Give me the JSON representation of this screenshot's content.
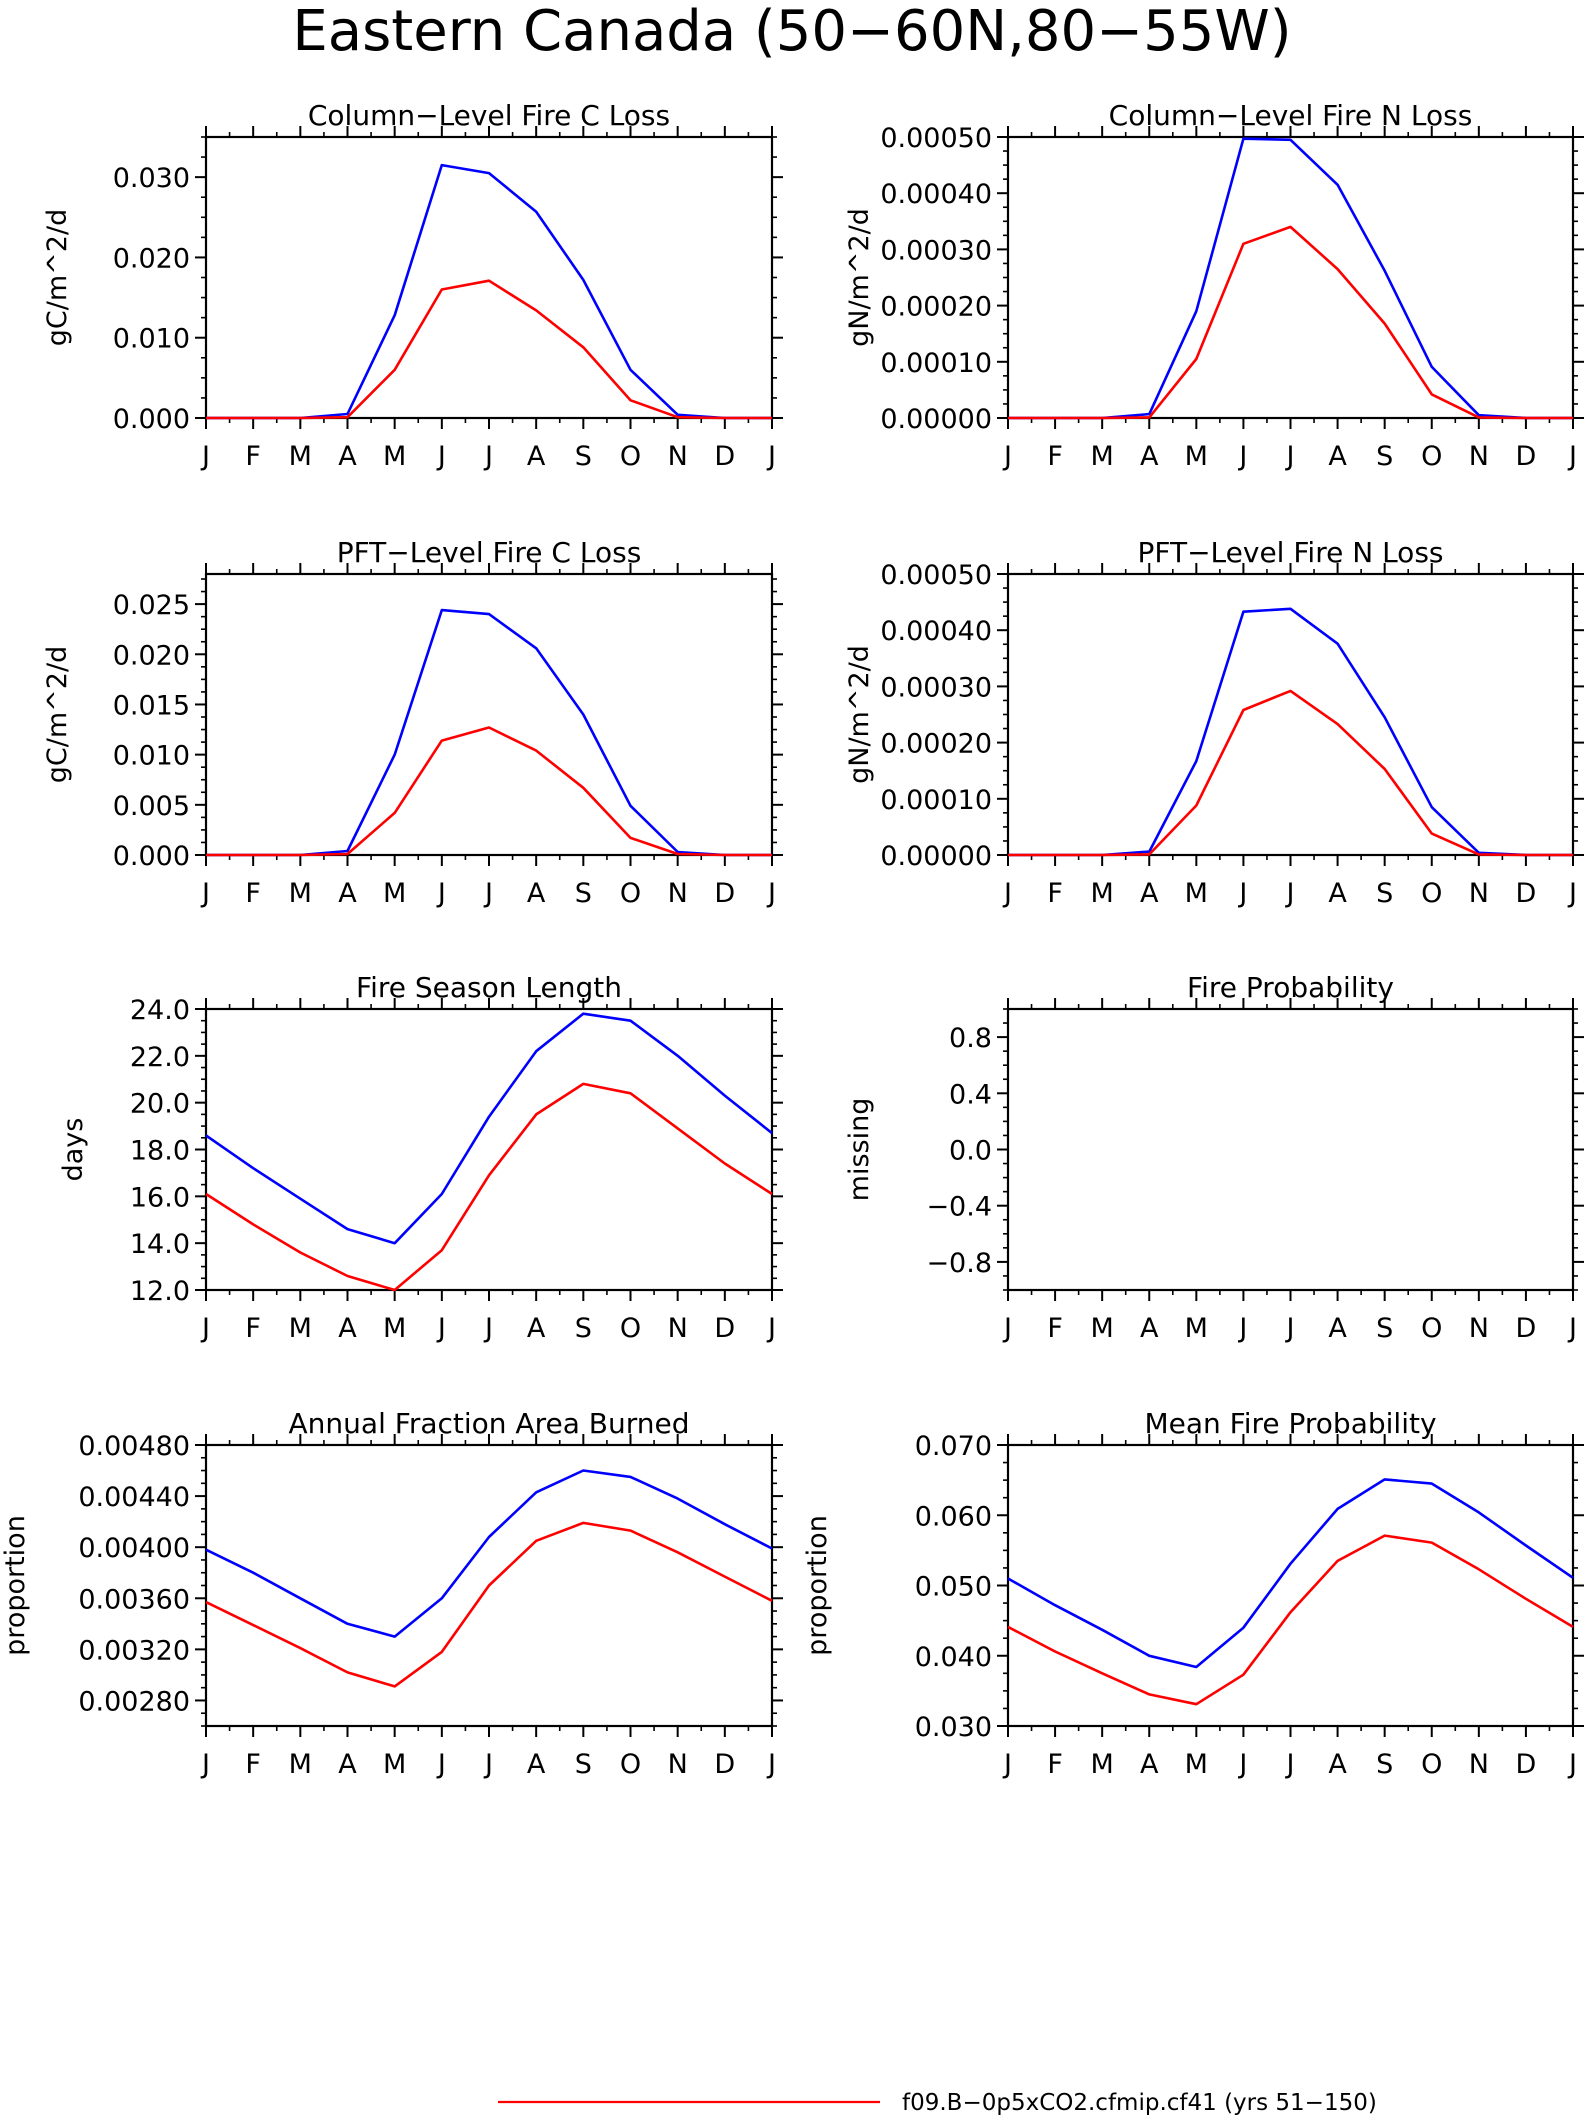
{
  "figure": {
    "title": "Eastern Canada (50−60N,80−55W)"
  },
  "legend": {
    "entries": [
      {
        "label": "f09.B−0p5xCO2.cfmip.cf41 (yrs 51−150)",
        "color": "#ff0000"
      }
    ]
  },
  "chart_data": [
    {
      "type": "line",
      "title": "Column−Level Fire C Loss",
      "ylabel": "gC/m^2/d",
      "x": [
        "J",
        "F",
        "M",
        "A",
        "M",
        "J",
        "J",
        "A",
        "S",
        "O",
        "N",
        "D",
        "J"
      ],
      "ylim": [
        0,
        0.035
      ],
      "yticks": [
        0,
        0.01,
        0.02,
        0.03
      ],
      "ytick_labels": [
        "0.000",
        "0.010",
        "0.020",
        "0.030"
      ],
      "series": [
        {
          "color": "#0000ff",
          "values": [
            0,
            0,
            0,
            0.0005,
            0.0128,
            0.0315,
            0.0305,
            0.0257,
            0.0172,
            0.006,
            0.0004,
            0,
            0
          ]
        },
        {
          "color": "#ff0000",
          "values": [
            0,
            0,
            0,
            0.0001,
            0.006,
            0.016,
            0.0171,
            0.0134,
            0.0088,
            0.0022,
            0.0001,
            0,
            0
          ]
        }
      ]
    },
    {
      "type": "line",
      "title": "Column−Level Fire N Loss",
      "ylabel": "gN/m^2/d",
      "x": [
        "J",
        "F",
        "M",
        "A",
        "M",
        "J",
        "J",
        "A",
        "S",
        "O",
        "N",
        "D",
        "J"
      ],
      "ylim": [
        0,
        0.0005
      ],
      "yticks": [
        0,
        0.0001,
        0.0002,
        0.0003,
        0.0004,
        0.0005
      ],
      "ytick_labels": [
        "0.00000",
        "0.00010",
        "0.00020",
        "0.00030",
        "0.00040",
        "0.00050"
      ],
      "series": [
        {
          "color": "#0000ff",
          "values": [
            0,
            0,
            0,
            7e-06,
            0.00019,
            0.000497,
            0.000495,
            0.000415,
            0.000262,
            9.1e-05,
            5e-06,
            0,
            0
          ]
        },
        {
          "color": "#ff0000",
          "values": [
            0,
            0,
            0,
            1e-06,
            0.000105,
            0.00031,
            0.00034,
            0.000265,
            0.000168,
            4.2e-05,
            1e-06,
            0,
            0
          ]
        }
      ]
    },
    {
      "type": "line",
      "title": "PFT−Level Fire C Loss",
      "ylabel": "gC/m^2/d",
      "x": [
        "J",
        "F",
        "M",
        "A",
        "M",
        "J",
        "J",
        "A",
        "S",
        "O",
        "N",
        "D",
        "J"
      ],
      "ylim": [
        0,
        0.028
      ],
      "yticks": [
        0,
        0.005,
        0.01,
        0.015,
        0.02,
        0.025
      ],
      "ytick_labels": [
        "0.000",
        "0.005",
        "0.010",
        "0.015",
        "0.020",
        "0.025"
      ],
      "series": [
        {
          "color": "#0000ff",
          "values": [
            0,
            0,
            0,
            0.0004,
            0.01,
            0.0244,
            0.024,
            0.0206,
            0.014,
            0.0049,
            0.0003,
            0,
            0
          ]
        },
        {
          "color": "#ff0000",
          "values": [
            0,
            0,
            0,
            0.0001,
            0.0042,
            0.0114,
            0.0127,
            0.0104,
            0.0067,
            0.0017,
            0.0001,
            0,
            0
          ]
        }
      ]
    },
    {
      "type": "line",
      "title": "PFT−Level Fire N Loss",
      "ylabel": "gN/m^2/d",
      "x": [
        "J",
        "F",
        "M",
        "A",
        "M",
        "J",
        "J",
        "A",
        "S",
        "O",
        "N",
        "D",
        "J"
      ],
      "ylim": [
        0,
        0.0005
      ],
      "yticks": [
        0,
        0.0001,
        0.0002,
        0.0003,
        0.0004,
        0.0005
      ],
      "ytick_labels": [
        "0.00000",
        "0.00010",
        "0.00020",
        "0.00030",
        "0.00040",
        "0.00050"
      ],
      "series": [
        {
          "color": "#0000ff",
          "values": [
            0,
            0,
            0,
            6e-06,
            0.000167,
            0.000433,
            0.000438,
            0.000376,
            0.000245,
            8.5e-05,
            4e-06,
            0,
            0
          ]
        },
        {
          "color": "#ff0000",
          "values": [
            0,
            0,
            0,
            1e-06,
            8.8e-05,
            0.000258,
            0.000292,
            0.000233,
            0.000153,
            3.8e-05,
            1e-06,
            0,
            0
          ]
        }
      ]
    },
    {
      "type": "line",
      "title": "Fire Season Length",
      "ylabel": "days",
      "x": [
        "J",
        "F",
        "M",
        "A",
        "M",
        "J",
        "J",
        "A",
        "S",
        "O",
        "N",
        "D",
        "J"
      ],
      "ylim": [
        12,
        24
      ],
      "yticks": [
        12,
        14,
        16,
        18,
        20,
        22,
        24
      ],
      "ytick_labels": [
        "12.0",
        "14.0",
        "16.0",
        "18.0",
        "20.0",
        "22.0",
        "24.0"
      ],
      "series": [
        {
          "color": "#0000ff",
          "values": [
            18.6,
            17.2,
            15.9,
            14.6,
            14.0,
            16.1,
            19.4,
            22.2,
            23.8,
            23.5,
            22.0,
            20.3,
            18.7
          ]
        },
        {
          "color": "#ff0000",
          "values": [
            16.1,
            14.8,
            13.6,
            12.6,
            12.0,
            13.7,
            16.9,
            19.5,
            20.8,
            20.4,
            18.9,
            17.4,
            16.1
          ]
        }
      ]
    },
    {
      "type": "line",
      "title": "Fire Probability",
      "ylabel": "missing",
      "x": [
        "J",
        "F",
        "M",
        "A",
        "M",
        "J",
        "J",
        "A",
        "S",
        "O",
        "N",
        "D",
        "J"
      ],
      "ylim": [
        -1,
        1
      ],
      "yticks": [
        -0.8,
        -0.4,
        0,
        0.4,
        0.8
      ],
      "ytick_labels": [
        "−0.8",
        "−0.4",
        "0.0",
        "0.4",
        "0.8"
      ],
      "series": []
    },
    {
      "type": "line",
      "title": "Annual Fraction Area Burned",
      "ylabel": "proportion",
      "x": [
        "J",
        "F",
        "M",
        "A",
        "M",
        "J",
        "J",
        "A",
        "S",
        "O",
        "N",
        "D",
        "J"
      ],
      "ylim": [
        0.0026,
        0.0048
      ],
      "yticks": [
        0.0028,
        0.0032,
        0.0036,
        0.004,
        0.0044,
        0.0048
      ],
      "ytick_labels": [
        "0.00280",
        "0.00320",
        "0.00360",
        "0.00400",
        "0.00440",
        "0.00480"
      ],
      "series": [
        {
          "color": "#0000ff",
          "values": [
            0.00398,
            0.0038,
            0.0036,
            0.0034,
            0.0033,
            0.0036,
            0.00408,
            0.00443,
            0.0046,
            0.00455,
            0.00438,
            0.00418,
            0.00399
          ]
        },
        {
          "color": "#ff0000",
          "values": [
            0.00357,
            0.00339,
            0.00321,
            0.00302,
            0.00291,
            0.00318,
            0.0037,
            0.00405,
            0.00419,
            0.00413,
            0.00396,
            0.00377,
            0.00358
          ]
        }
      ]
    },
    {
      "type": "line",
      "title": "Mean Fire Probability",
      "ylabel": "proportion",
      "x": [
        "J",
        "F",
        "M",
        "A",
        "M",
        "J",
        "J",
        "A",
        "S",
        "O",
        "N",
        "D",
        "J"
      ],
      "ylim": [
        0.03,
        0.07
      ],
      "yticks": [
        0.03,
        0.04,
        0.05,
        0.06,
        0.07
      ],
      "ytick_labels": [
        "0.030",
        "0.040",
        "0.050",
        "0.060",
        "0.070"
      ],
      "series": [
        {
          "color": "#0000ff",
          "values": [
            0.051,
            0.0472,
            0.0437,
            0.04,
            0.0384,
            0.044,
            0.0531,
            0.0609,
            0.0651,
            0.0645,
            0.0604,
            0.0557,
            0.0511
          ]
        },
        {
          "color": "#ff0000",
          "values": [
            0.0441,
            0.0406,
            0.0375,
            0.0345,
            0.0331,
            0.0373,
            0.0462,
            0.0535,
            0.0571,
            0.0561,
            0.0523,
            0.0481,
            0.0441
          ]
        }
      ]
    }
  ]
}
